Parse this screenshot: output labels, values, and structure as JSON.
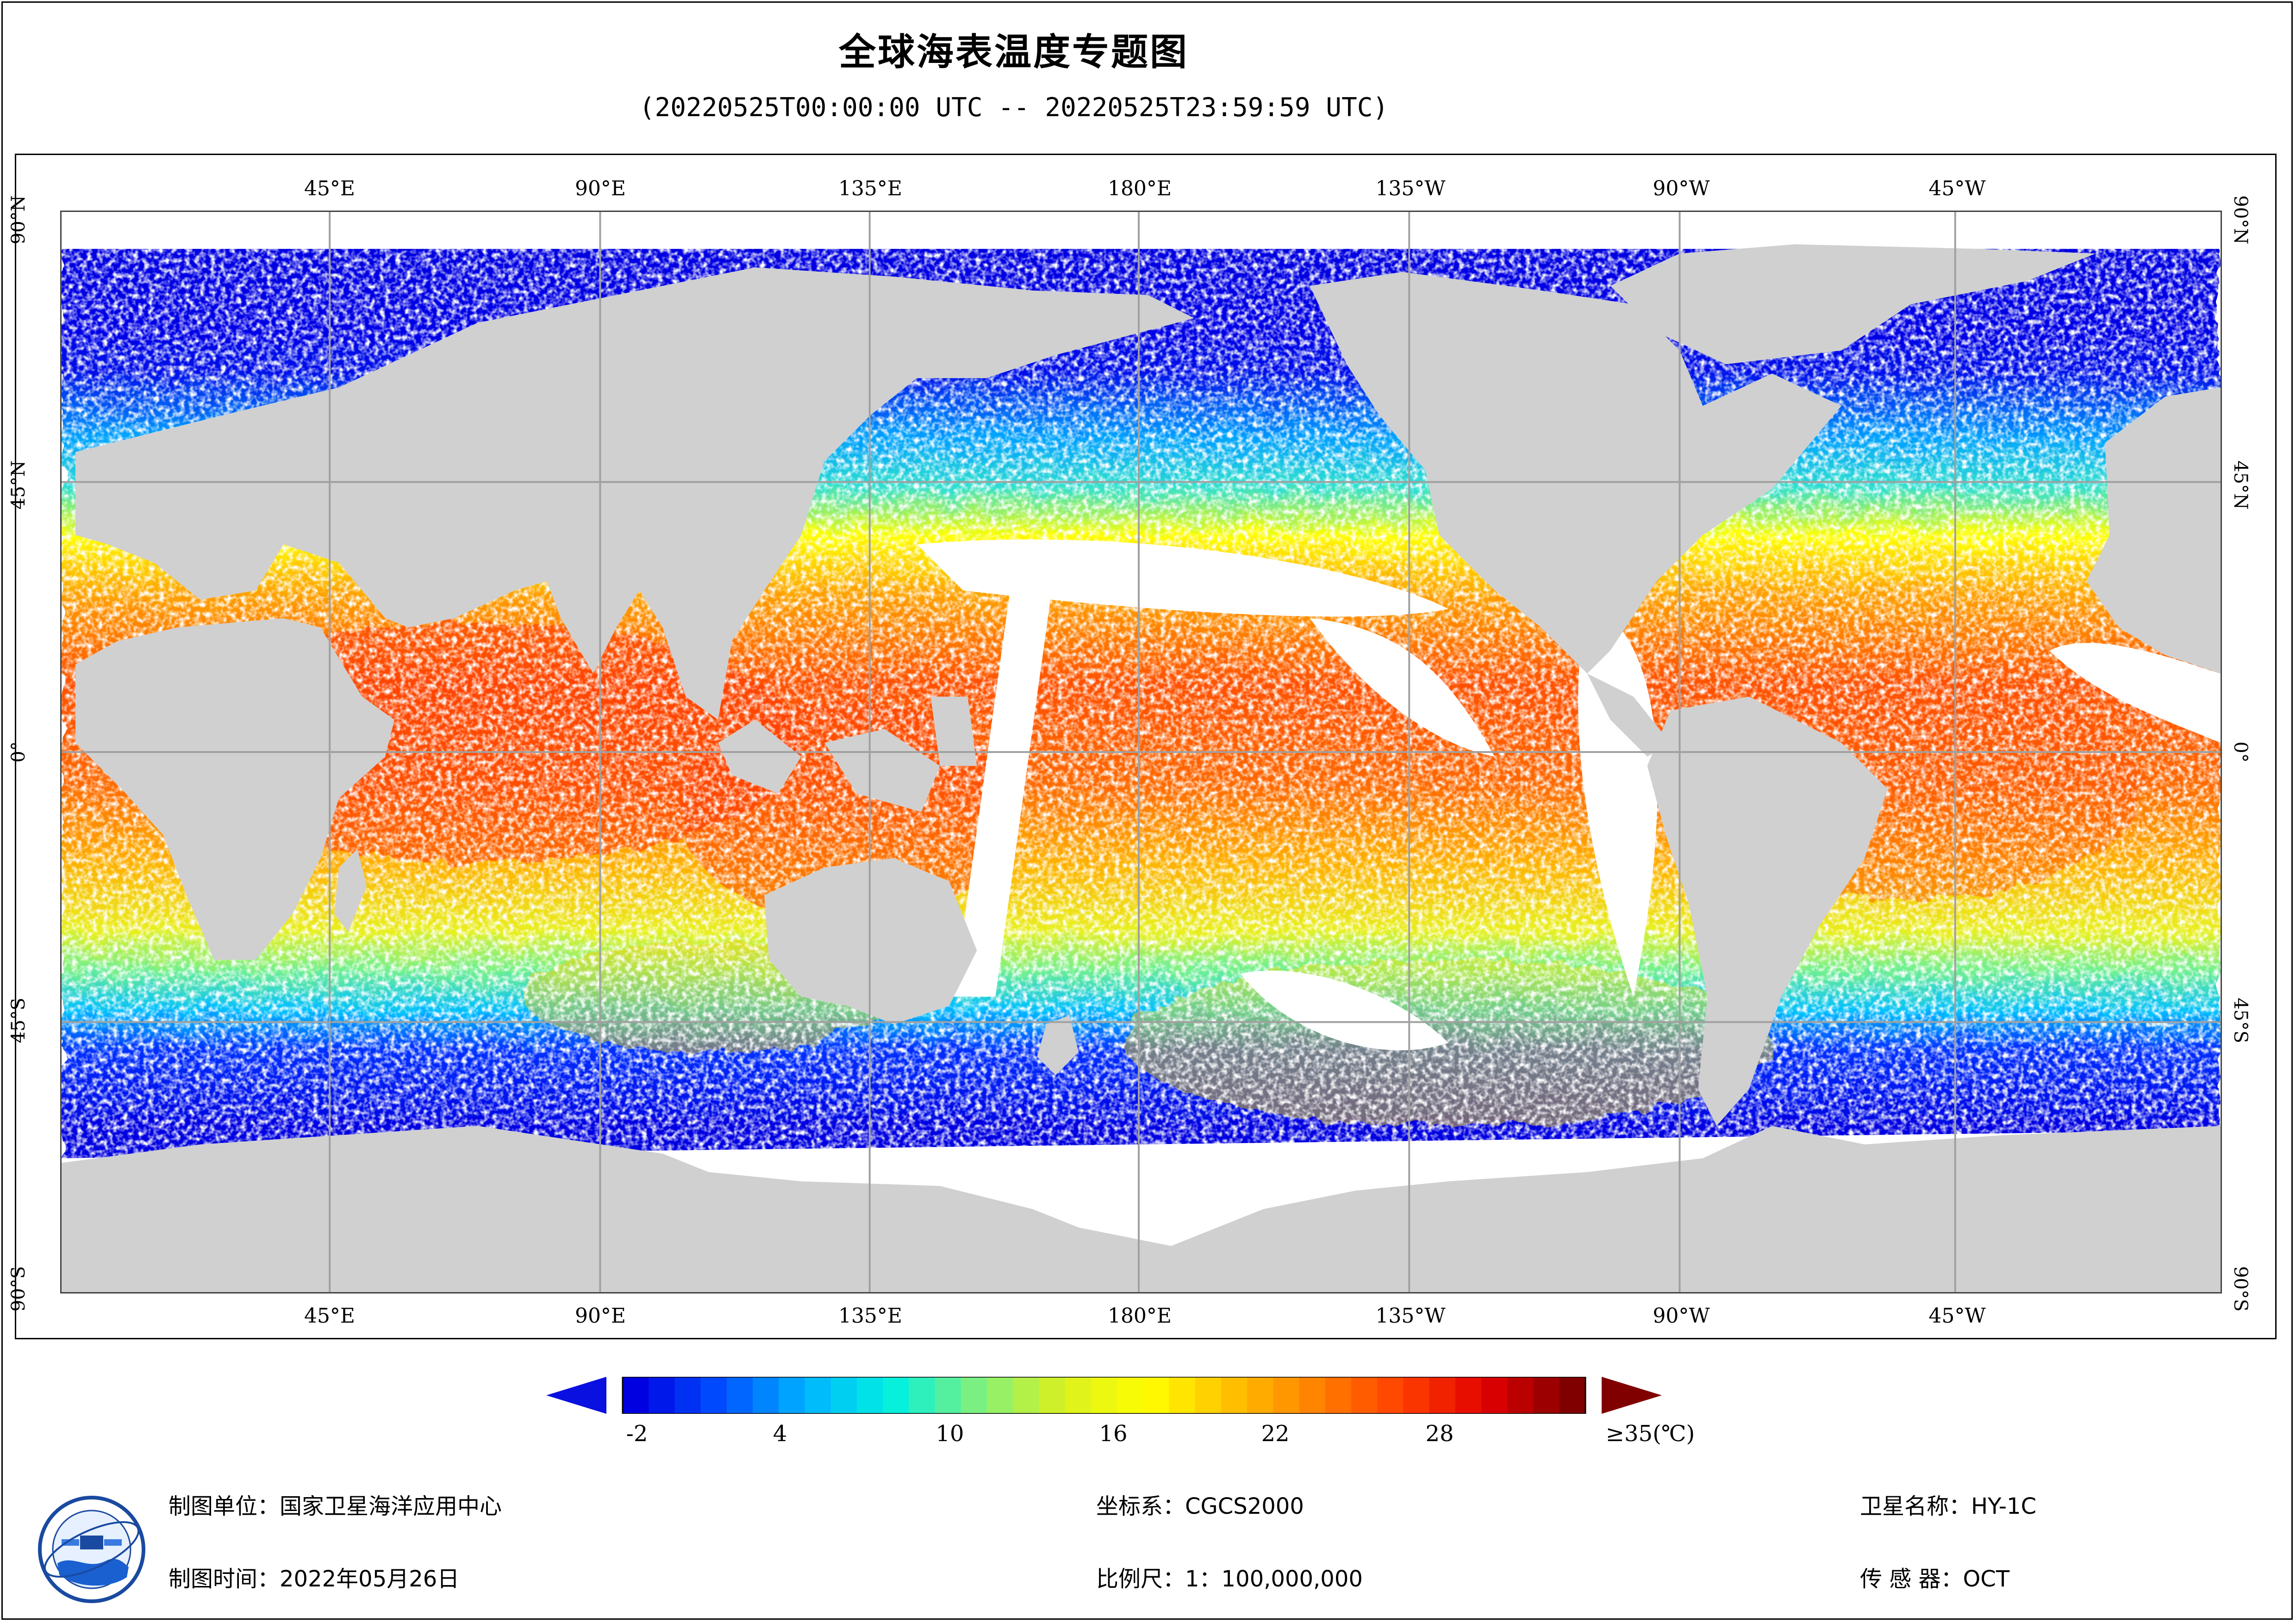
{
  "title": "全球海表温度专题图",
  "subtitle": "(20220525T00:00:00 UTC -- 20220525T23:59:59 UTC)",
  "longitude_labels": [
    "45°E",
    "90°E",
    "135°E",
    "180°E",
    "135°W",
    "90°W",
    "45°W"
  ],
  "latitude_labels": [
    "90°N",
    "45°N",
    "0°",
    "45°S",
    "90°S"
  ],
  "colorbar": {
    "ticks": [
      "-2",
      "4",
      "10",
      "16",
      "22",
      "28",
      "≥35(℃)"
    ],
    "colors": [
      "#0000e0",
      "#0050ff",
      "#00b4ff",
      "#00f0e0",
      "#7ff07f",
      "#d8f020",
      "#ffff00",
      "#ffc000",
      "#ff8000",
      "#ff4000",
      "#e00000",
      "#800000"
    ],
    "under_color": "#0a10e0",
    "over_color": "#800000"
  },
  "info": {
    "unit_label": "制图单位：国家卫星海洋应用中心",
    "time_label": "制图时间：2022年05月26日",
    "crs_label": "坐标系：CGCS2000",
    "scale_label": "比例尺：1：100,000,000",
    "satellite_label": "卫星名称：HY-1C",
    "sensor_label": "传 感 器：OCT"
  },
  "legend_colors": {
    "land": "#d0d0d0",
    "grid": "#a0a0a0",
    "no_data": "#ffffff"
  }
}
